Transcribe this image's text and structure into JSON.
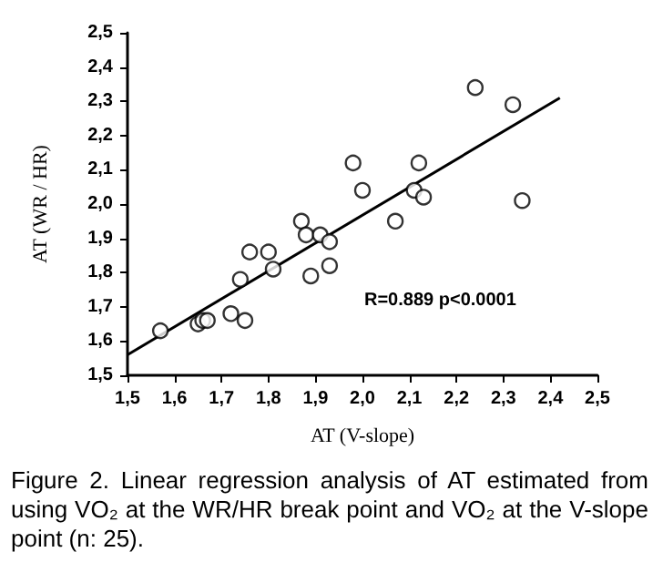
{
  "chart_data": {
    "type": "scatter",
    "xlabel": "AT (V-slope)",
    "ylabel": "AT (WR / HR)",
    "series": [
      {
        "color": "#000000",
        "x": [
          1.57,
          1.65,
          1.66,
          1.67,
          1.72,
          1.74,
          1.75,
          1.76,
          1.8,
          1.81,
          1.87,
          1.88,
          1.89,
          1.91,
          1.93,
          1.93,
          1.98,
          2.0,
          2.07,
          2.11,
          2.12,
          2.13,
          2.24,
          2.32,
          2.34
        ],
        "values": [
          1.63,
          1.65,
          1.66,
          1.66,
          1.68,
          1.78,
          1.66,
          1.86,
          1.86,
          1.81,
          1.95,
          1.91,
          1.79,
          1.91,
          1.89,
          1.82,
          2.12,
          2.04,
          1.95,
          2.04,
          2.12,
          2.02,
          2.34,
          2.29,
          2.01
        ]
      },
      {
        "type": "line",
        "marker": "none",
        "color": "#000000",
        "x": [
          1.5,
          2.42
        ],
        "values": [
          1.56,
          2.31
        ]
      }
    ],
    "xlim": [
      1.5,
      2.5
    ],
    "ylim": [
      1.5,
      2.5
    ],
    "xticks": [
      {
        "value": 1.5,
        "label": "1,5"
      },
      {
        "value": 1.6,
        "label": "1,6"
      },
      {
        "value": 1.7,
        "label": "1,7"
      },
      {
        "value": 1.8,
        "label": "1,8"
      },
      {
        "value": 1.9,
        "label": "1,9"
      },
      {
        "value": 2.0,
        "label": "2,0"
      },
      {
        "value": 2.1,
        "label": "2,1"
      },
      {
        "value": 2.2,
        "label": "2,2"
      },
      {
        "value": 2.3,
        "label": "2,3"
      },
      {
        "value": 2.4,
        "label": "2,4"
      },
      {
        "value": 2.5,
        "label": "2,5"
      }
    ],
    "yticks": [
      {
        "value": 1.5,
        "label": "1,5"
      },
      {
        "value": 1.6,
        "label": "1,6"
      },
      {
        "value": 1.7,
        "label": "1,7"
      },
      {
        "value": 1.8,
        "label": "1,8"
      },
      {
        "value": 1.9,
        "label": "1,9"
      },
      {
        "value": 2.0,
        "label": "2,0"
      },
      {
        "value": 2.1,
        "label": "2,1"
      },
      {
        "value": 2.2,
        "label": "2,2"
      },
      {
        "value": 2.3,
        "label": "2,3"
      },
      {
        "value": 2.4,
        "label": "2,4"
      },
      {
        "value": 2.5,
        "label": "2,5"
      }
    ],
    "marker": "circle",
    "grid": false,
    "annotations": [
      "R=0.889 p<0.0001",
      "Figure 2. Linear regression analysis of AT estimated from using VO₂ at the WR/HR break point and VO₂ at the V-slope point (n: 25)."
    ]
  }
}
